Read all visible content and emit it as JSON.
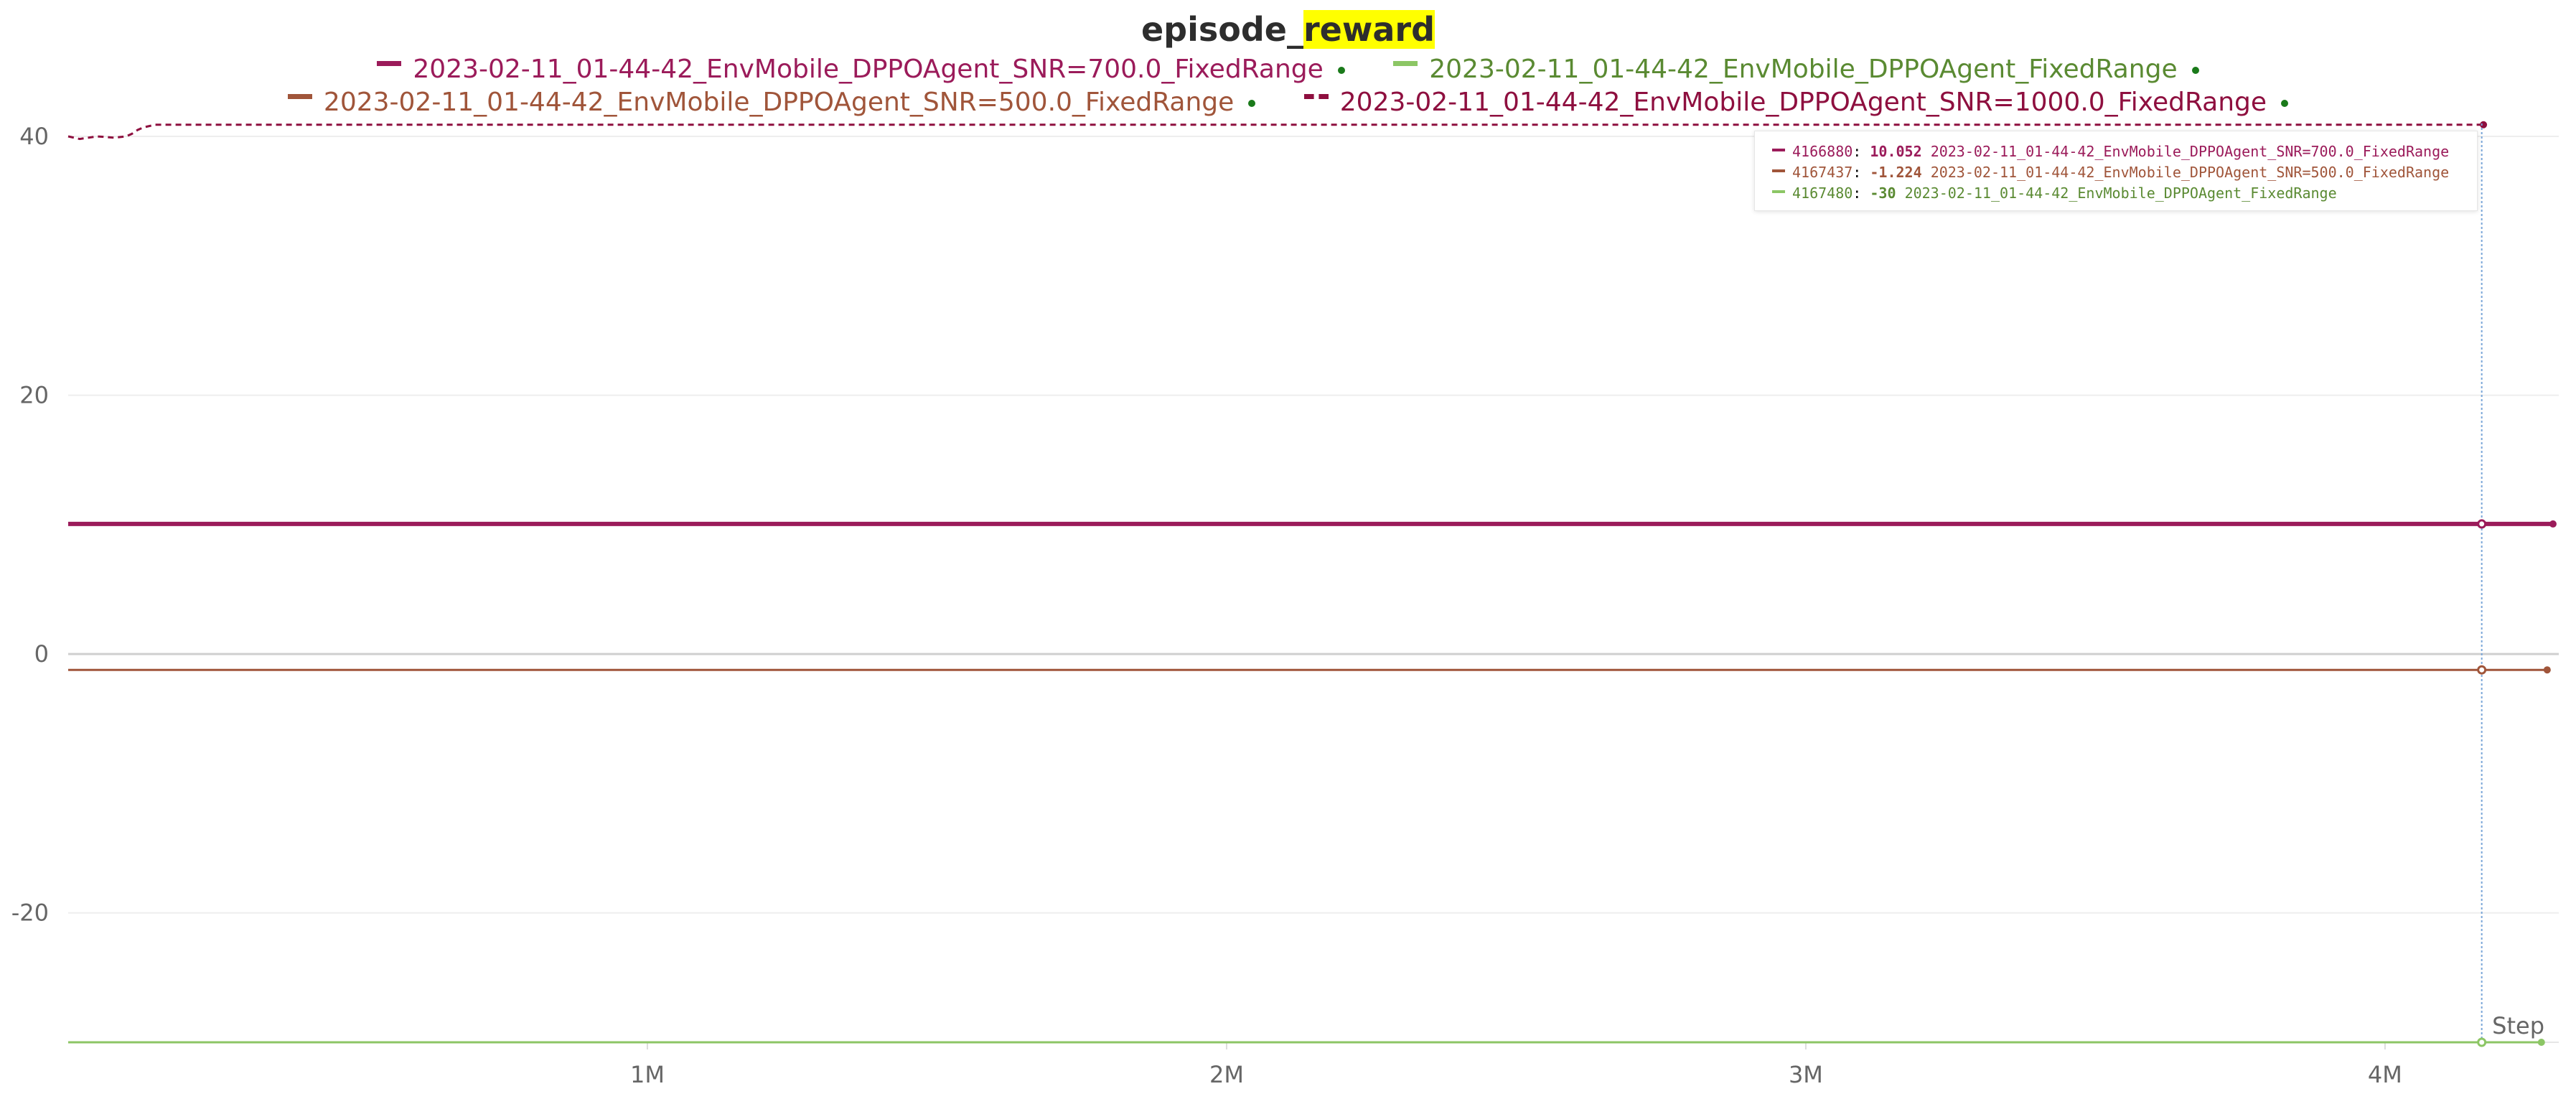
{
  "chart_data": {
    "type": "line",
    "title_prefix": "episode_",
    "title_highlight": "reward",
    "xlabel": "Step",
    "xlim": [
      0,
      4300000
    ],
    "ylim": [
      -30,
      40
    ],
    "x_ticks": [
      {
        "value": 1000000,
        "label": "1M"
      },
      {
        "value": 2000000,
        "label": "2M"
      },
      {
        "value": 3000000,
        "label": "3M"
      },
      {
        "value": 4000000,
        "label": "4M"
      }
    ],
    "y_ticks": [
      {
        "value": 40,
        "label": "40"
      },
      {
        "value": 20,
        "label": "20"
      },
      {
        "value": 0,
        "label": "0"
      },
      {
        "value": -20,
        "label": "-20"
      }
    ],
    "legend_placement": "top",
    "series": [
      {
        "name": "2023-02-11_01-44-42_EnvMobile_DPPOAgent_SNR=700.0_FixedRange",
        "color": "#9b1b5a",
        "dash": false,
        "x": [
          0,
          4166880,
          4290000
        ],
        "y": [
          10.052,
          10.052,
          10.052
        ]
      },
      {
        "name": "2023-02-11_01-44-42_EnvMobile_DPPOAgent_FixedRange",
        "color": "#8cc665",
        "dash": false,
        "x": [
          0,
          4167480,
          4270000
        ],
        "y": [
          -30,
          -30,
          -30
        ]
      },
      {
        "name": "2023-02-11_01-44-42_EnvMobile_DPPOAgent_SNR=500.0_FixedRange",
        "color": "#a0553a",
        "dash": false,
        "x": [
          0,
          4167437,
          4280000
        ],
        "y": [
          -1.224,
          -1.224,
          -1.224
        ]
      },
      {
        "name": "2023-02-11_01-44-42_EnvMobile_DPPOAgent_SNR=1000.0_FixedRange",
        "color": "#8e0f3f",
        "dash": true,
        "x": [
          0,
          20000,
          50000,
          80000,
          100000,
          110000,
          120000,
          130000,
          150000,
          4170000
        ],
        "y": [
          40,
          39.8,
          40,
          39.9,
          40,
          40.2,
          40.5,
          40.7,
          40.9,
          40.9
        ]
      }
    ],
    "legend_rows": [
      [
        0,
        1
      ],
      [
        2,
        3
      ]
    ],
    "hover": {
      "x": 4167000,
      "rows": [
        {
          "series": 0,
          "step": "4166880",
          "value": "10.052"
        },
        {
          "series": 2,
          "step": "4167437",
          "value": "-1.224"
        },
        {
          "series": 1,
          "step": "4167480",
          "value": "-30"
        }
      ]
    },
    "tooltip_colors": [
      "#9b1b5a",
      "#a0553a",
      "#5a8a32"
    ]
  }
}
